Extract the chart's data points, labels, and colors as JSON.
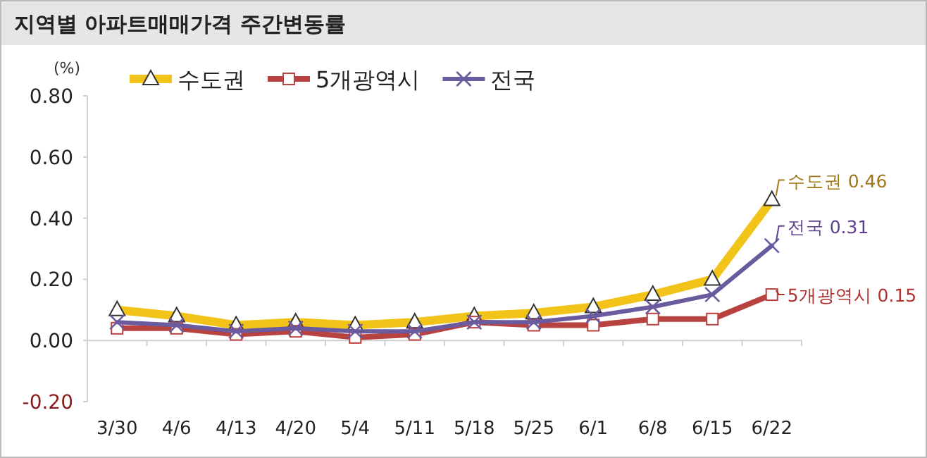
{
  "chart_data": {
    "type": "line",
    "title": "지역별 아파트매매가격 주간변동률",
    "ylabel": "(%)",
    "categories": [
      "3/30",
      "4/6",
      "4/13",
      "4/20",
      "5/4",
      "5/11",
      "5/18",
      "5/25",
      "6/1",
      "6/8",
      "6/15",
      "6/22"
    ],
    "series": [
      {
        "name": "수도권",
        "color": "#f2c318",
        "marker": "triangle",
        "values": [
          0.1,
          0.08,
          0.05,
          0.06,
          0.05,
          0.06,
          0.08,
          0.09,
          0.11,
          0.15,
          0.2,
          0.46
        ]
      },
      {
        "name": "5개광역시",
        "color": "#b8423f",
        "marker": "square",
        "values": [
          0.04,
          0.04,
          0.02,
          0.03,
          0.01,
          0.02,
          0.06,
          0.05,
          0.05,
          0.07,
          0.07,
          0.15
        ]
      },
      {
        "name": "전국",
        "color": "#6a5a9e",
        "marker": "cross",
        "values": [
          0.06,
          0.05,
          0.03,
          0.04,
          0.03,
          0.03,
          0.06,
          0.06,
          0.08,
          0.11,
          0.15,
          0.31
        ]
      }
    ],
    "annotations": [
      {
        "text": "수도권 0.46",
        "x": "6/22",
        "y": 0.46
      },
      {
        "text": "전국 0.31",
        "x": "6/22",
        "y": 0.31
      },
      {
        "text": "5개광역시 0.15",
        "x": "6/22",
        "y": 0.15
      }
    ],
    "ylim": [
      -0.2,
      0.8
    ],
    "yticks": [
      {
        "value": -0.2,
        "label": "-0.20"
      },
      {
        "value": 0,
        "label": "0.00"
      },
      {
        "value": 0.2,
        "label": "0.20"
      },
      {
        "value": 0.4,
        "label": "0.40"
      },
      {
        "value": 0.6,
        "label": "0.60"
      },
      {
        "value": 0.8,
        "label": "0.80"
      }
    ],
    "legend": "top",
    "line_style": "solid"
  }
}
